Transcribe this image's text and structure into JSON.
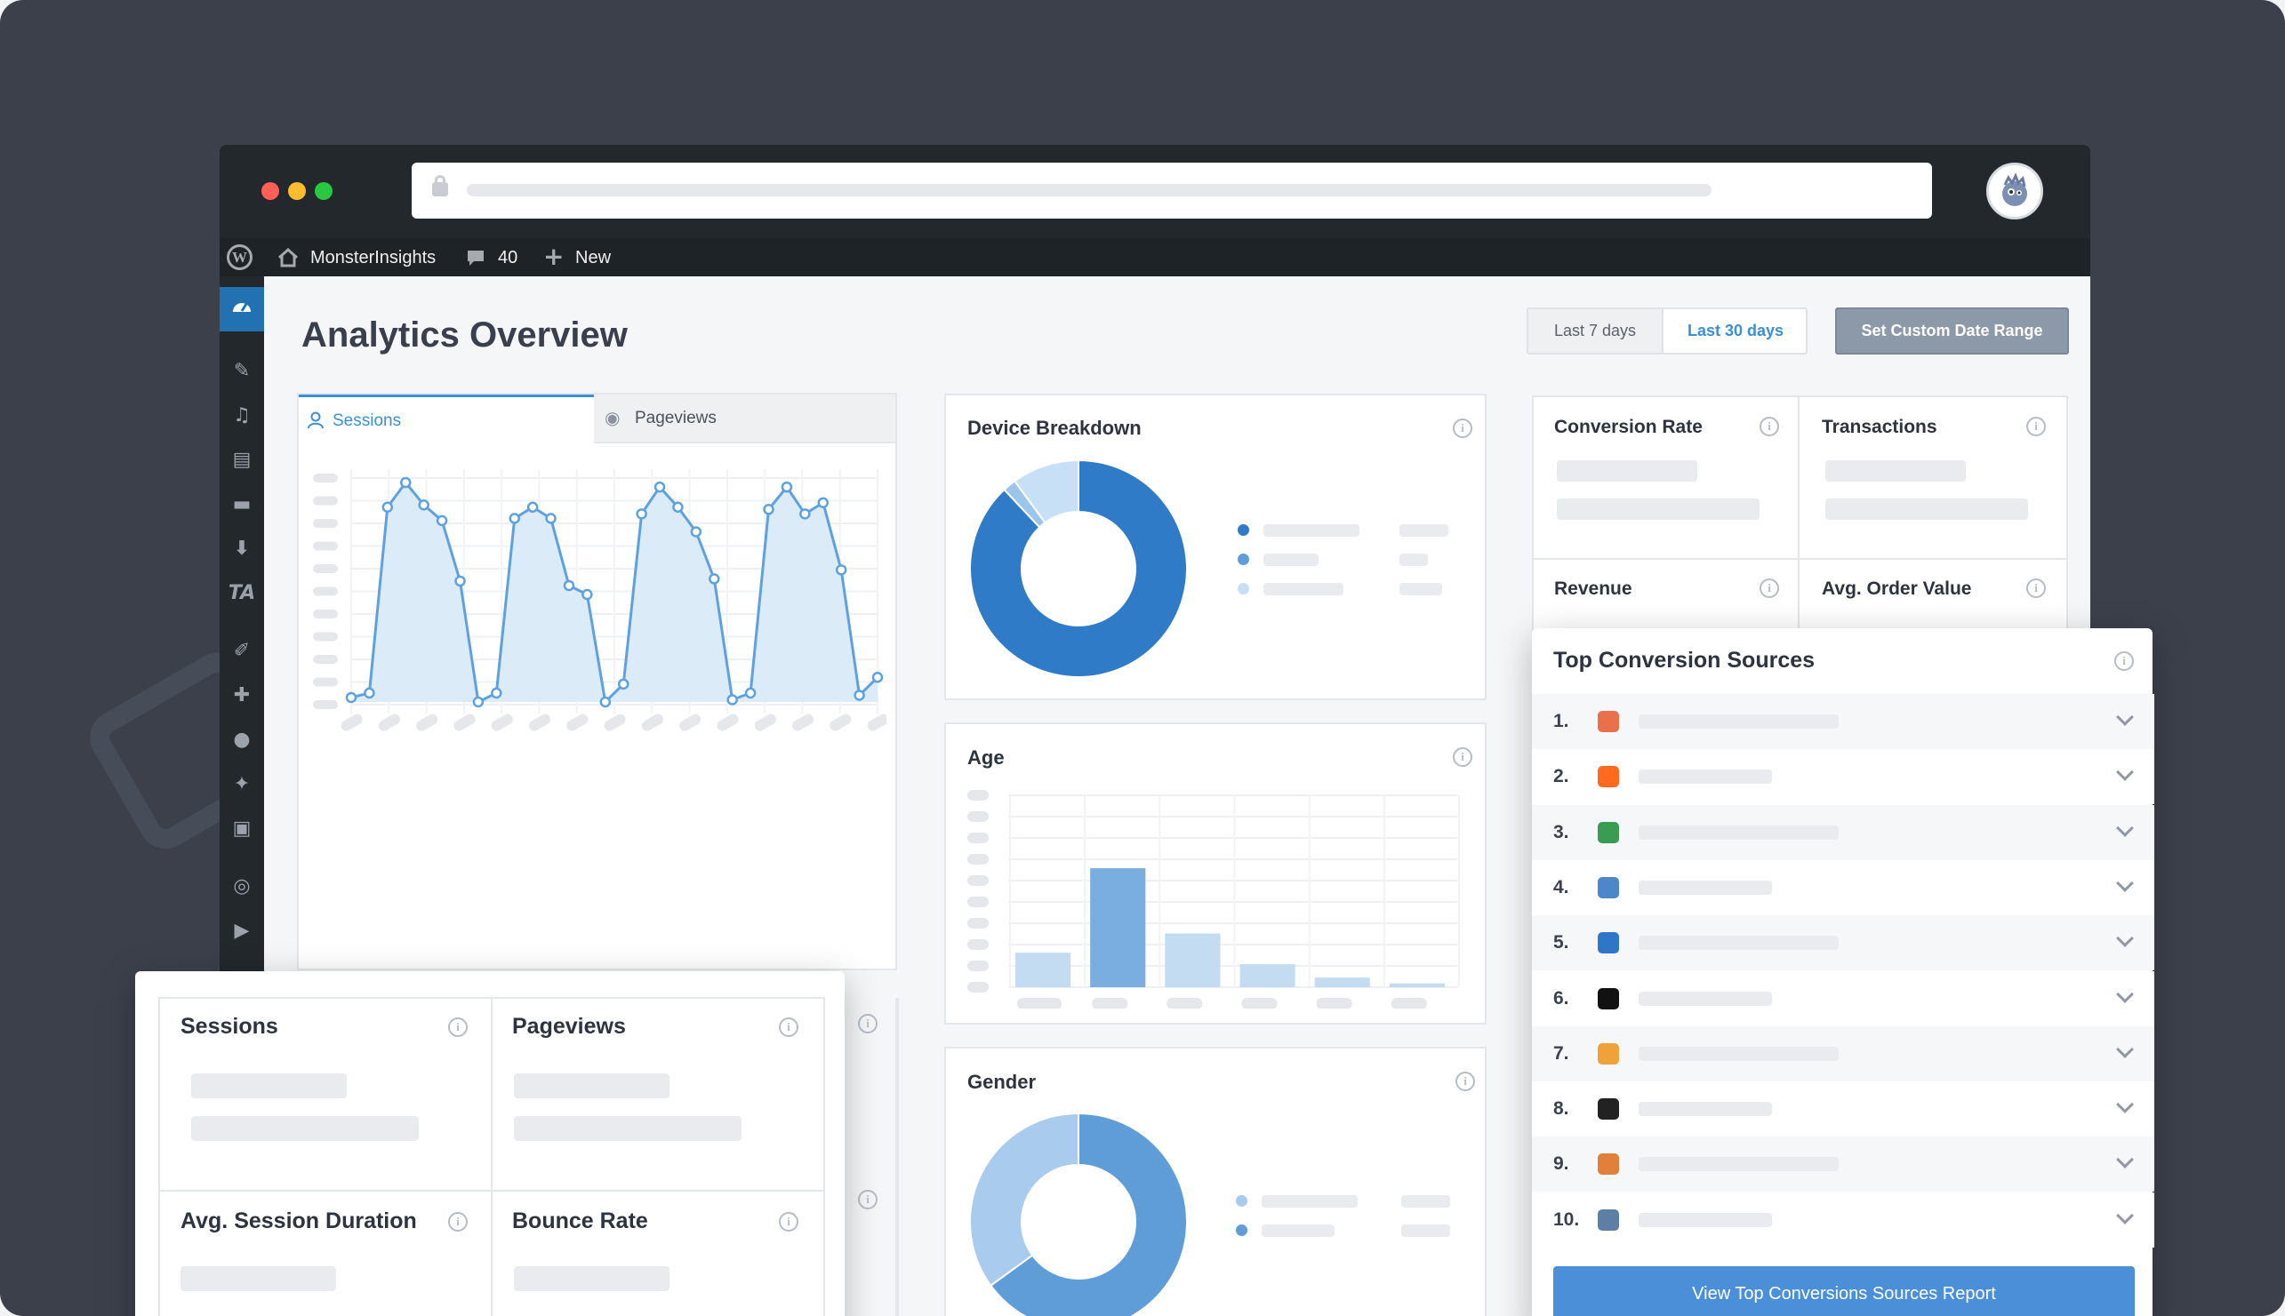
{
  "browser": {
    "traffic_lights": [
      "#ff5f57",
      "#febc2e",
      "#28c840"
    ],
    "avatar_icon": "monster-icon"
  },
  "wp_bar": {
    "site_name": "MonsterInsights",
    "comments_count": "40",
    "new_label": "New"
  },
  "page": {
    "title": "Analytics Overview"
  },
  "date_range": {
    "last7": "Last 7 days",
    "last30": "Last 30 days",
    "custom": "Set Custom Date Range",
    "active": "last30"
  },
  "tabs": {
    "sessions": "Sessions",
    "pageviews": "Pageviews",
    "active": "sessions"
  },
  "chart_data": [
    {
      "type": "area",
      "series": [
        {
          "values": [
            2,
            4,
            87,
            98,
            88,
            81,
            54,
            0,
            4,
            82,
            87,
            82,
            52,
            48,
            0,
            8,
            84,
            96,
            87,
            76,
            55,
            1,
            4,
            86,
            96,
            84,
            89,
            59,
            3,
            11
          ]
        }
      ],
      "ylim": [
        0,
        100
      ],
      "note_labels": "axis labels shown as skeleton placeholders"
    },
    {
      "type": "pie",
      "values": [
        88,
        2,
        10
      ],
      "colors": [
        "#2f7bc8",
        "#9cc5ec",
        "#c7e0f6"
      ]
    },
    {
      "type": "bar",
      "values": [
        18,
        62,
        28,
        12,
        5,
        2
      ],
      "color": "#c4dcf2",
      "highlight": 1,
      "highlight_color": "#7aaee0",
      "ylim": [
        0,
        100
      ]
    },
    {
      "type": "pie",
      "values": [
        65,
        35
      ],
      "colors": [
        "#5f9dd9",
        "#a8cbee"
      ]
    }
  ],
  "device": {
    "title": "Device Breakdown",
    "legend_colors": [
      "#2f7bc8",
      "#5f9dd9",
      "#c7e0f6"
    ]
  },
  "age": {
    "title": "Age"
  },
  "gender": {
    "title": "Gender",
    "legend_colors": [
      "#a8cbee",
      "#5f9dd9"
    ]
  },
  "metrics_top": {
    "conversion_rate": "Conversion Rate",
    "transactions": "Transactions",
    "revenue": "Revenue",
    "avg_order_value": "Avg. Order Value"
  },
  "metrics_bottom": {
    "sessions": "Sessions",
    "pageviews": "Pageviews",
    "avg_session": "Avg. Session Duration",
    "bounce_rate": "Bounce Rate"
  },
  "top_sources": {
    "title": "Top Conversion Sources",
    "button": "View Top Conversions Sources Report",
    "rows": [
      {
        "num": "1.",
        "icon": "firefox-icon",
        "color": "#e8704a"
      },
      {
        "num": "2.",
        "icon": "reddit-icon",
        "color": "#ff6a1f"
      },
      {
        "num": "3.",
        "icon": "android-icon",
        "color": "#3a9b52"
      },
      {
        "num": "4.",
        "icon": "wordpress-icon",
        "color": "#4b87c9"
      },
      {
        "num": "5.",
        "icon": "tumblr-icon",
        "color": "#2f77c6"
      },
      {
        "num": "6.",
        "icon": "medium-icon",
        "color": "#111111"
      },
      {
        "num": "7.",
        "icon": "star-icon",
        "color": "#f0a23a"
      },
      {
        "num": "8.",
        "icon": "square-icon",
        "color": "#222222"
      },
      {
        "num": "9.",
        "icon": "basketball-icon",
        "color": "#e0803a"
      },
      {
        "num": "10.",
        "icon": "globe-icon",
        "color": "#5d7fa6"
      }
    ]
  }
}
